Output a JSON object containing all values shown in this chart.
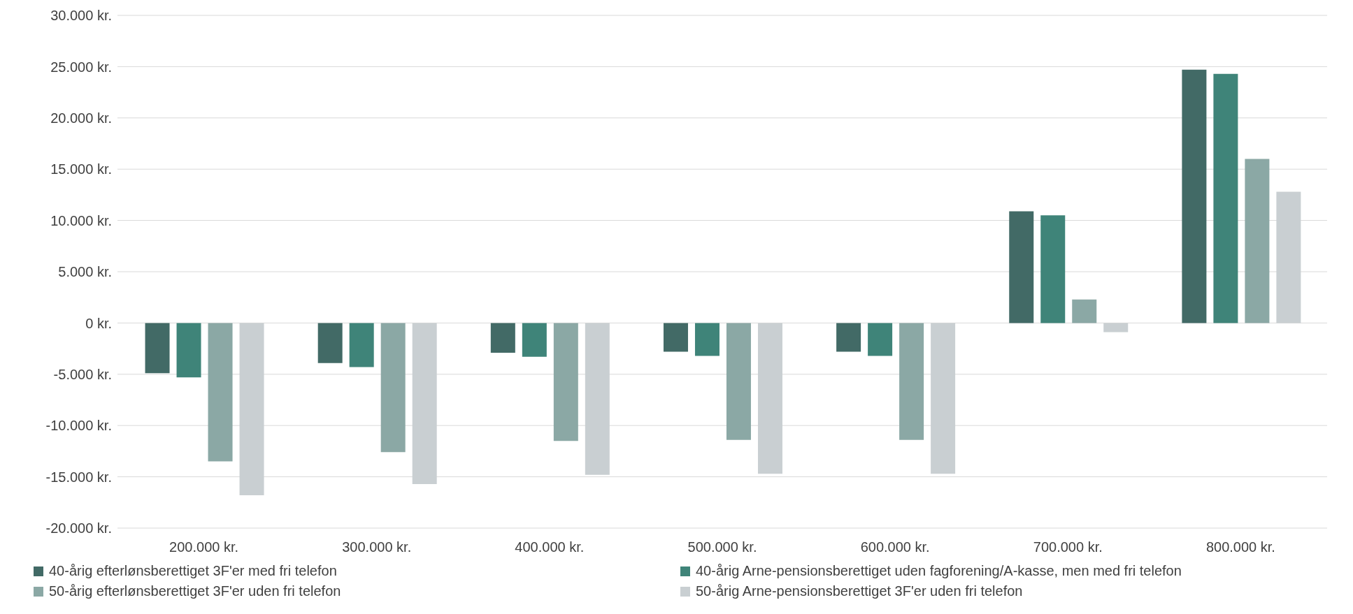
{
  "chart_data": {
    "type": "bar",
    "categories": [
      "200.000 kr.",
      "300.000 kr.",
      "400.000 kr.",
      "500.000 kr.",
      "600.000 kr.",
      "700.000 kr.",
      "800.000 kr."
    ],
    "series": [
      {
        "name": "40-årig efterlønsberettiget 3F'er med fri telefon",
        "color": "#426a66",
        "values": [
          -4900,
          -3900,
          -2900,
          -2800,
          -2800,
          10900,
          24700
        ]
      },
      {
        "name": "40-årig Arne-pensionsberettiget uden fagforening/A-kasse, men med fri telefon",
        "color": "#3f8479",
        "values": [
          -5300,
          -4300,
          -3300,
          -3200,
          -3200,
          10500,
          24300
        ]
      },
      {
        "name": "50-årig efterlønsberettiget 3F'er uden fri telefon",
        "color": "#8ba8a5",
        "values": [
          -13500,
          -12600,
          -11500,
          -11400,
          -11400,
          2300,
          16000
        ]
      },
      {
        "name": "50-årig Arne-pensionsberettiget 3F'er uden fri telefon",
        "color": "#c9cfd2",
        "values": [
          -16800,
          -15700,
          -14800,
          -14700,
          -14700,
          -900,
          12800
        ]
      }
    ],
    "ylim": [
      -20000,
      30000
    ],
    "yticks": [
      {
        "value": -20000,
        "label": "-20.000 kr."
      },
      {
        "value": -15000,
        "label": "-15.000 kr."
      },
      {
        "value": -10000,
        "label": "-10.000 kr."
      },
      {
        "value": -5000,
        "label": "-5.000 kr."
      },
      {
        "value": 0,
        "label": "0 kr."
      },
      {
        "value": 5000,
        "label": "5.000 kr."
      },
      {
        "value": 10000,
        "label": "10.000 kr."
      },
      {
        "value": 15000,
        "label": "15.000 kr."
      },
      {
        "value": 20000,
        "label": "20.000 kr."
      },
      {
        "value": 25000,
        "label": "25.000 kr."
      },
      {
        "value": 30000,
        "label": "30.000 kr."
      }
    ],
    "grid": "y",
    "legend": "bottom"
  }
}
